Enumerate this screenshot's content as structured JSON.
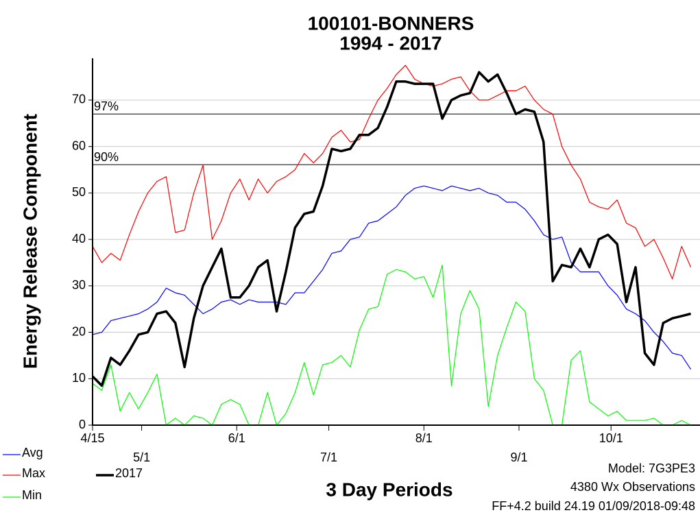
{
  "chart_data": {
    "type": "line",
    "title": "100101-BONNERS",
    "subtitle": "1994 - 2017",
    "y_label": "Energy Release Component",
    "x_label": "3 Day Periods",
    "notes": [
      "Model: 7G3PE3",
      "4380 Wx Observations",
      "FF+4.2 build 24.19 01/09/2018-09:48"
    ],
    "x": [
      0,
      3,
      6,
      9,
      12,
      15,
      18,
      21,
      24,
      27,
      30,
      33,
      36,
      39,
      42,
      45,
      48,
      51,
      54,
      57,
      60,
      63,
      66,
      69,
      72,
      75,
      78,
      81,
      84,
      87,
      90,
      93,
      96,
      99,
      102,
      105,
      108,
      111,
      114,
      117,
      120,
      123,
      126,
      129,
      132,
      135,
      138,
      141,
      144,
      147,
      150,
      153,
      156,
      159,
      162,
      165,
      168,
      171,
      174,
      177,
      180,
      183,
      186,
      189,
      192,
      195
    ],
    "xlim": [
      0,
      198
    ],
    "xticks": [
      {
        "value": 0,
        "label": "4/15"
      },
      {
        "value": 16,
        "label": "5/1"
      },
      {
        "value": 47,
        "label": "6/1"
      },
      {
        "value": 77,
        "label": "7/1"
      },
      {
        "value": 108,
        "label": "8/1"
      },
      {
        "value": 139,
        "label": "9/1"
      },
      {
        "value": 169,
        "label": "10/1"
      }
    ],
    "ylim": [
      0,
      79
    ],
    "yticks": [
      0,
      10,
      20,
      30,
      40,
      50,
      60,
      70
    ],
    "grid": true,
    "reference_lines": [
      {
        "label": "97%",
        "value": 67
      },
      {
        "label": "90%",
        "value": 56.1
      }
    ],
    "series": [
      {
        "name": "Avg",
        "color": "#0000ff",
        "values": [
          19.5,
          20,
          22.5,
          23,
          23.5,
          24,
          25,
          26.5,
          29.5,
          28.5,
          28,
          26,
          24,
          25,
          26.5,
          27,
          26,
          27,
          26.5,
          26.5,
          26.5,
          26,
          28.5,
          28.5,
          31,
          33.5,
          37,
          37.5,
          40,
          40.5,
          43.5,
          44,
          45.5,
          47,
          49.5,
          51,
          51.5,
          51,
          50.5,
          51.5,
          51,
          50.5,
          51,
          50,
          49.5,
          48,
          48,
          46.5,
          44,
          41,
          40,
          40.5,
          35,
          33,
          33,
          33,
          30,
          28,
          25,
          24,
          22.5,
          20,
          18,
          15.5,
          15,
          12
        ]
      },
      {
        "name": "Max",
        "color": "#ff0000",
        "values": [
          38.5,
          35,
          37,
          35.5,
          41,
          46,
          50,
          52.5,
          53.5,
          41.5,
          42,
          50,
          56,
          40,
          44,
          50,
          53,
          48.5,
          53,
          50,
          52.5,
          53.5,
          55,
          58.5,
          56.5,
          58.5,
          62,
          63.5,
          61,
          61.5,
          66,
          70,
          72.5,
          75.5,
          77.5,
          74.5,
          73.5,
          73,
          73.5,
          74.5,
          75,
          72,
          70,
          70,
          71,
          72,
          72,
          73,
          70,
          68,
          67,
          60,
          56,
          53,
          48,
          47,
          46.5,
          48.5,
          43.5,
          42.5,
          38.5,
          40,
          36,
          31.5,
          38.5,
          34
        ]
      },
      {
        "name": "Min",
        "color": "#00ff00",
        "values": [
          9,
          7.5,
          13,
          3,
          7,
          3.5,
          7,
          11,
          0,
          1.5,
          0,
          2,
          1.5,
          0,
          4.5,
          5.5,
          4.5,
          0,
          0,
          7,
          0,
          2.5,
          7,
          13.5,
          6.5,
          13,
          13.5,
          15,
          12.5,
          20.5,
          25,
          25.5,
          32.5,
          33.5,
          33,
          31.5,
          32,
          27.5,
          34.5,
          8.5,
          24,
          29,
          25,
          4,
          15,
          21,
          26.5,
          24.5,
          10,
          7.5,
          0,
          0,
          14,
          16,
          5,
          3.5,
          2,
          3,
          1,
          1,
          1,
          1.5,
          0,
          0,
          1,
          0
        ]
      },
      {
        "name": "2017",
        "color": "#000000",
        "values": [
          10.5,
          8.5,
          14.5,
          13,
          16,
          19.5,
          20,
          24,
          24.5,
          22,
          12.5,
          23,
          30,
          34,
          38,
          27.5,
          27.5,
          30,
          34,
          35.5,
          24.5,
          33,
          42.5,
          45.5,
          46,
          51.5,
          59.5,
          59,
          59.5,
          62.5,
          62.5,
          64,
          68.5,
          74,
          74,
          73.5,
          73.5,
          73.5,
          66,
          70,
          71,
          71.5,
          76,
          74,
          75.5,
          71.5,
          67,
          68,
          67.5,
          61,
          31,
          34.5,
          34,
          38,
          34,
          40,
          41,
          39,
          26.5,
          34,
          15.5,
          13,
          22,
          23,
          23.5,
          24
        ]
      }
    ]
  }
}
